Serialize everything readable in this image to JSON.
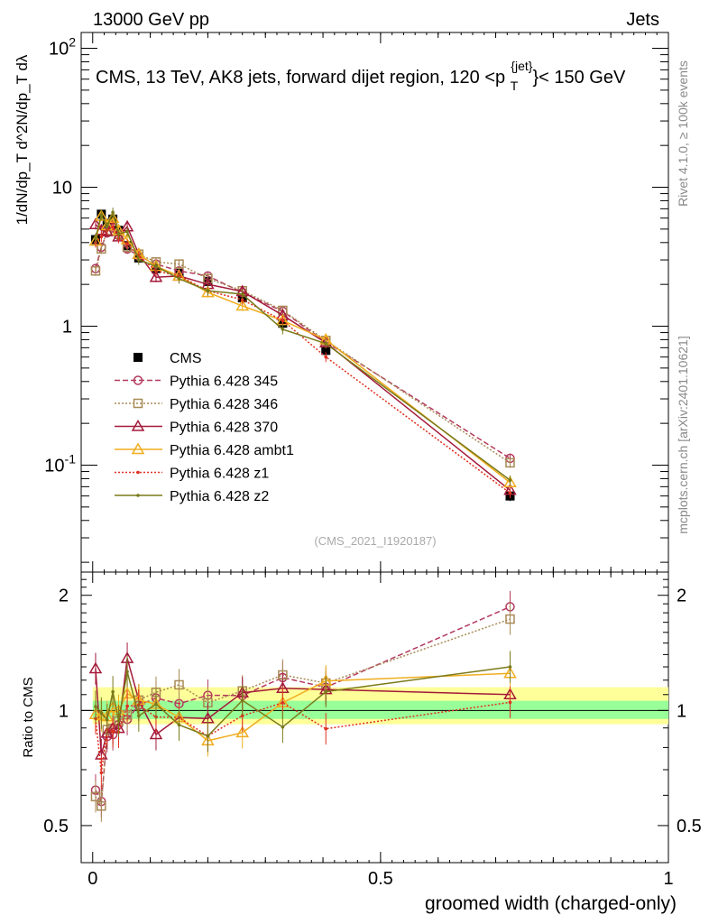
{
  "header": {
    "left": "13000 GeV pp",
    "right": "Jets"
  },
  "side": {
    "rivet": "Rivet 4.1.0, ≥ 100k events",
    "mcplots": "mcplots.cern.ch [arXiv:2401.10621]"
  },
  "chart_data": {
    "type": "line",
    "title": "CMS, 13 TeV, AK8 jets, forward dijet region, 120 <p_T^{jet}< 150 GeV",
    "watermark": "(CMS_2021_I1920187)",
    "xlabel": "groomed width (charged-only)",
    "ylabel": "1/dN/dp_T  d^2N/dp_T dλ",
    "ratio_ylabel": "Ratio to CMS",
    "xlim": [
      -0.02,
      1.0
    ],
    "ylim": [
      0.017,
      130
    ],
    "ratio_ylim": [
      0.4,
      2.3
    ],
    "x_ticks": [
      0,
      0.5,
      1
    ],
    "x_tick_labels": [
      "0",
      "0.5",
      "1"
    ],
    "y_tick_labels": [
      "10^-1",
      "1",
      "10",
      "10^2"
    ],
    "ratio_tick_labels": [
      "0.5",
      "1",
      "2"
    ],
    "x": [
      0.005,
      0.015,
      0.025,
      0.035,
      0.045,
      0.06,
      0.08,
      0.11,
      0.15,
      0.2,
      0.26,
      0.33,
      0.405,
      0.725
    ],
    "series": [
      {
        "name": "CMS",
        "color": "#000000",
        "style": "data",
        "values": [
          4.2,
          6.4,
          5.5,
          5.9,
          4.9,
          3.8,
          3.1,
          2.6,
          2.4,
          2.1,
          1.6,
          1.05,
          0.67,
          0.06
        ]
      },
      {
        "name": "Pythia 6.428 345",
        "color": "#b33a5e",
        "style": "dashed-circle",
        "values": [
          2.6,
          3.7,
          4.7,
          5.1,
          4.5,
          3.6,
          3.2,
          2.8,
          2.5,
          2.3,
          1.75,
          1.28,
          0.77,
          0.112
        ]
      },
      {
        "name": "Pythia 6.428 346",
        "color": "#a88a55",
        "style": "dotted-square",
        "values": [
          2.5,
          3.6,
          4.9,
          5.3,
          4.6,
          3.7,
          3.3,
          2.9,
          2.8,
          2.2,
          1.8,
          1.3,
          0.79,
          0.104
        ]
      },
      {
        "name": "Pythia 6.428 370",
        "color": "#a31a3a",
        "style": "solid-triangle",
        "values": [
          5.4,
          4.9,
          4.8,
          5.3,
          4.4,
          5.2,
          3.3,
          2.25,
          2.3,
          2.0,
          1.78,
          1.2,
          0.76,
          0.066
        ]
      },
      {
        "name": "Pythia 6.428 ambt1",
        "color": "#f0ad1e",
        "style": "solid-triangle",
        "values": [
          4.1,
          6.2,
          5.3,
          6.0,
          4.9,
          4.2,
          3.3,
          2.7,
          2.3,
          1.75,
          1.4,
          1.1,
          0.8,
          0.075
        ]
      },
      {
        "name": "Pythia 6.428 z1",
        "color": "#e03020",
        "style": "dotted-dot",
        "values": [
          4.0,
          4.4,
          4.9,
          5.2,
          4.3,
          3.9,
          3.2,
          2.5,
          2.3,
          1.8,
          1.55,
          1.1,
          0.6,
          0.063
        ]
      },
      {
        "name": "Pythia 6.428 z2",
        "color": "#7a7a1a",
        "style": "solid-dot",
        "values": [
          4.3,
          6.3,
          5.2,
          6.6,
          4.6,
          4.8,
          3.0,
          2.7,
          2.2,
          1.8,
          1.7,
          0.95,
          0.75,
          0.078
        ]
      }
    ]
  }
}
